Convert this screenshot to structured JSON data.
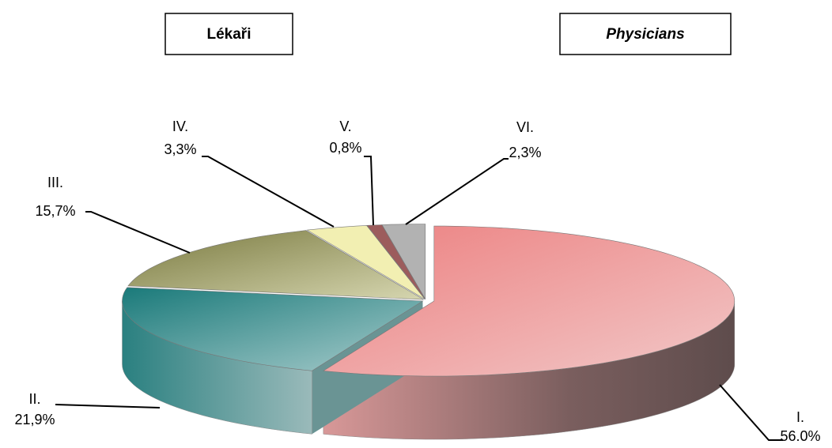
{
  "chart_data": {
    "type": "pie",
    "titles": [
      "Lékaři",
      "Physicians"
    ],
    "categories": [
      "I.",
      "II.",
      "III.",
      "IV.",
      "V.",
      "VI."
    ],
    "values": [
      56.0,
      21.9,
      15.7,
      3.3,
      0.8,
      2.3
    ],
    "value_labels": [
      "56.0%",
      "21,9%",
      "15,7%",
      "3,3%",
      "0,8%",
      "2,3%"
    ],
    "colors": [
      "#ec9090",
      "#5f9e9e",
      "#a6a66e",
      "#f2efb2",
      "#9c5c5c",
      "#b2b2b2"
    ]
  }
}
